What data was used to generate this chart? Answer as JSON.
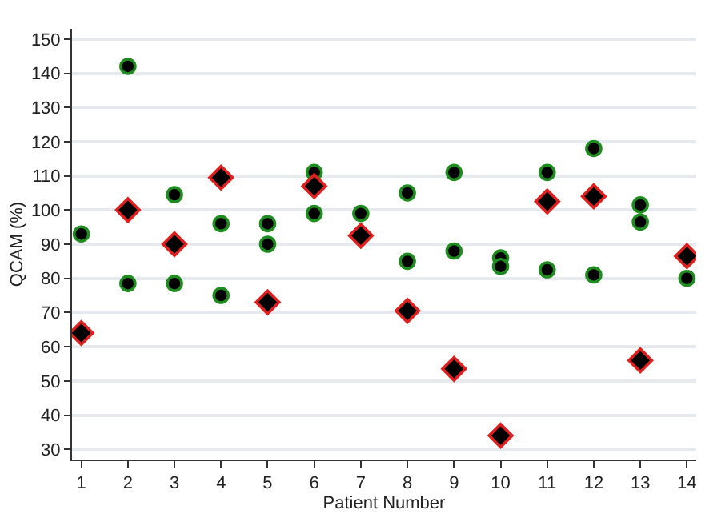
{
  "chart_data": {
    "type": "scatter",
    "xlabel": "Patient Number",
    "ylabel": "QCAM (%)",
    "xlim": [
      0.8,
      14.2
    ],
    "xticks": [
      1,
      2,
      3,
      4,
      5,
      6,
      7,
      8,
      9,
      10,
      11,
      12,
      13,
      14
    ],
    "ylim": [
      27,
      153
    ],
    "yticks": [
      30,
      40,
      50,
      60,
      70,
      80,
      90,
      100,
      110,
      120,
      130,
      140,
      150
    ],
    "grid": "y",
    "series": [
      {
        "color": "#1e8c1e",
        "marker": "circle",
        "x": [
          1,
          2,
          2,
          3,
          3,
          4,
          4,
          5,
          5,
          6,
          6,
          7,
          8,
          8,
          9,
          9,
          10,
          10,
          11,
          11,
          12,
          12,
          13,
          13,
          14
        ],
        "values": [
          93,
          142,
          78.5,
          104.5,
          78.5,
          96,
          75,
          96,
          90,
          111,
          99,
          99,
          105,
          85,
          111,
          88,
          86,
          83.5,
          111,
          82.5,
          118,
          81,
          101.5,
          96.5,
          80
        ]
      },
      {
        "color": "#e0201e",
        "marker": "diamond",
        "x": [
          1,
          2,
          3,
          4,
          5,
          6,
          7,
          8,
          9,
          10,
          11,
          12,
          13,
          14
        ],
        "values": [
          64,
          100,
          90,
          109.5,
          73,
          107,
          92.5,
          70.5,
          53.5,
          34,
          102.5,
          104,
          56,
          86.5
        ]
      }
    ]
  }
}
